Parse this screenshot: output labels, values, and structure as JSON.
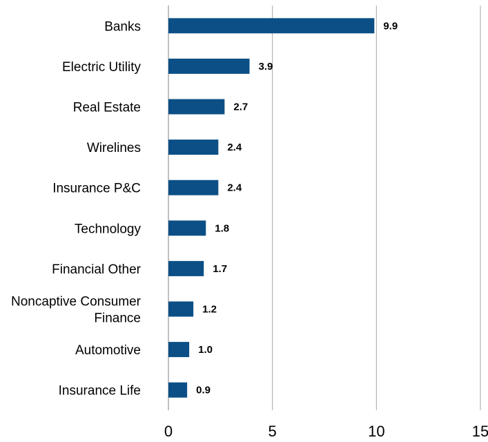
{
  "chart_data": {
    "type": "bar",
    "orientation": "horizontal",
    "categories": [
      "Banks",
      "Electric Utility",
      "Real Estate",
      "Wirelines",
      "Insurance P&C",
      "Technology",
      "Financial Other",
      "Noncaptive Consumer Finance",
      "Automotive",
      "Insurance Life"
    ],
    "category_lines": [
      [
        "Banks"
      ],
      [
        "Electric Utility"
      ],
      [
        "Real Estate"
      ],
      [
        "Wirelines"
      ],
      [
        "Insurance P&C"
      ],
      [
        "Technology"
      ],
      [
        "Financial Other"
      ],
      [
        "Noncaptive Consumer",
        "Finance"
      ],
      [
        "Automotive"
      ],
      [
        "Insurance Life"
      ]
    ],
    "values": [
      9.9,
      3.9,
      2.7,
      2.4,
      2.4,
      1.8,
      1.7,
      1.2,
      1.0,
      0.9
    ],
    "value_labels": [
      "9.9",
      "3.9",
      "2.7",
      "2.4",
      "2.4",
      "1.8",
      "1.7",
      "1.2",
      "1.0",
      "0.9"
    ],
    "x_ticks": [
      0,
      5,
      10,
      15
    ],
    "xlim": [
      0,
      15
    ],
    "grid": "vertical",
    "legend": "none",
    "bar_color": "#0b4f86"
  }
}
